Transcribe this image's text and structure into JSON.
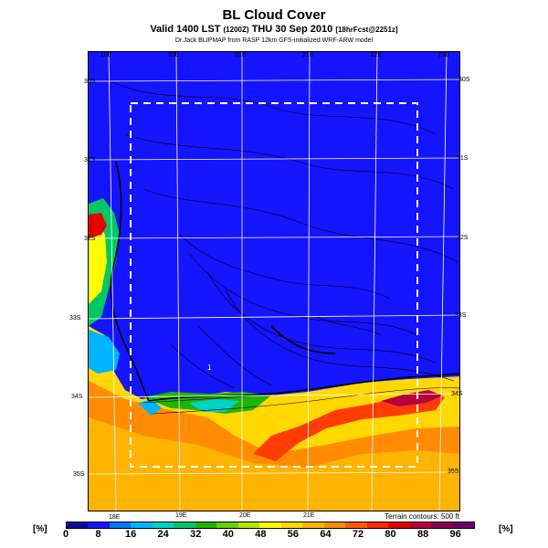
{
  "header": {
    "title": "BL Cloud Cover",
    "subtitle_main": "Valid 1400 LST",
    "subtitle_utc": "(1200Z)",
    "subtitle_date": "THU 30 Sep 2010",
    "subtitle_fcst": "[18hrFcst@2251z]",
    "credit": "Dr.Jack BLIPMAP from RASP 12km GFS-initialized WRF-ARW model"
  },
  "map": {
    "top_lon_labels": [
      "18E",
      "19E",
      "20E",
      "21E",
      "22E",
      "23E"
    ],
    "bottom_lon_labels": [
      "18E",
      "19E",
      "20E",
      "21E"
    ],
    "left_lat_labels": [
      "30S",
      "31S",
      "32S",
      "33S",
      "34S",
      "35S"
    ],
    "right_lat_labels": [
      "30S",
      "31S",
      "32S",
      "33S",
      "34S",
      "35S"
    ],
    "terrain_note": "Terrain contours: 500 ft",
    "point_marker_label": "1",
    "colors": {
      "ocean_clear": "#1414ff",
      "land_high": "#ff3c00",
      "land_mid": "#ffd800",
      "forecast_box": "#ffffff"
    }
  },
  "colorbar": {
    "unit_left": "[%]",
    "unit_right": "[%]",
    "labels": [
      "0",
      "8",
      "16",
      "24",
      "32",
      "40",
      "48",
      "56",
      "64",
      "72",
      "80",
      "88",
      "96"
    ],
    "colors": [
      "#0a0a9c",
      "#1414ff",
      "#0078ff",
      "#00b4ff",
      "#00d2c8",
      "#00c864",
      "#1eb400",
      "#64d200",
      "#b4e600",
      "#ffff00",
      "#ffd800",
      "#ffb400",
      "#ff8c00",
      "#ff5a00",
      "#ff2800",
      "#e60000",
      "#b4003c",
      "#8c0050",
      "#6e0064"
    ]
  }
}
